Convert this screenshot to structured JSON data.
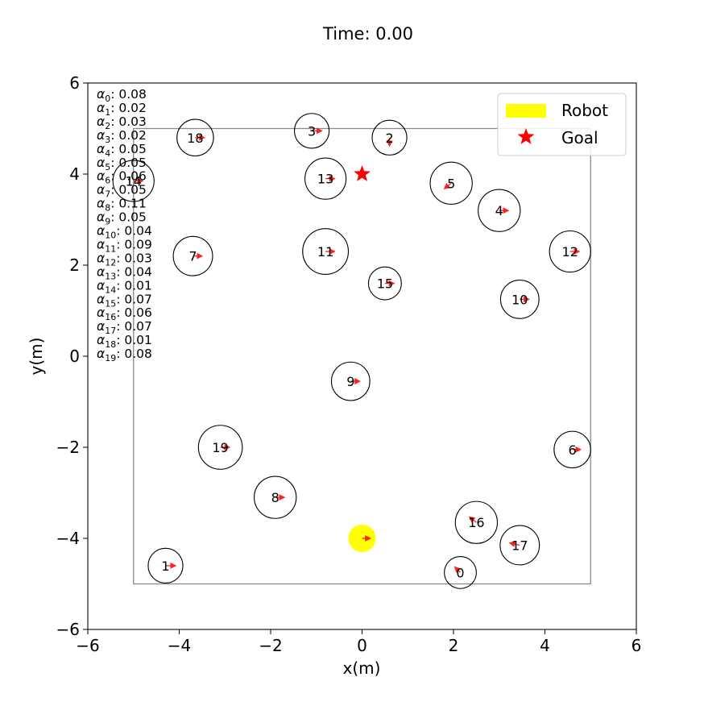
{
  "title": "Time: 0.00",
  "chart_data": {
    "type": "scatter",
    "title": "Time: 0.00",
    "xlabel": "x(m)",
    "ylabel": "y(m)",
    "xlim": [
      -6,
      6
    ],
    "ylim": [
      -6,
      6
    ],
    "xticks": [
      -6,
      -4,
      -2,
      0,
      2,
      4,
      6
    ],
    "yticks": [
      -6,
      -4,
      -2,
      0,
      2,
      4,
      6
    ],
    "xtick_labels": [
      "−6",
      "−4",
      "−2",
      "0",
      "2",
      "4",
      "6"
    ],
    "ytick_labels": [
      "−6",
      "−4",
      "−2",
      "0",
      "2",
      "4",
      "6"
    ],
    "grid": false,
    "legend_position": "top-right",
    "legend": [
      {
        "label": "Robot",
        "marker": "yellow-patch",
        "color": "#ffff00"
      },
      {
        "label": "Goal",
        "marker": "star",
        "color": "#ff0000"
      }
    ],
    "boundary": {
      "x": [
        -5,
        5
      ],
      "y": [
        -5,
        5
      ]
    },
    "robot": {
      "x": 0.0,
      "y": -4.0,
      "radius": 0.3,
      "color": "#ffff00",
      "heading_dx": 0.18,
      "heading_dy": 0.0
    },
    "goal": {
      "x": 0.0,
      "y": 4.0,
      "color": "#ff0000"
    },
    "humans": [
      {
        "id": "0",
        "x": 2.15,
        "y": -4.75,
        "r": 0.35,
        "dx": -0.12,
        "dy": 0.12
      },
      {
        "id": "1",
        "x": -4.3,
        "y": -4.6,
        "r": 0.38,
        "dx": 0.22,
        "dy": 0.0
      },
      {
        "id": "2",
        "x": 0.6,
        "y": 4.8,
        "r": 0.38,
        "dx": 0.0,
        "dy": -0.18
      },
      {
        "id": "3",
        "x": -1.1,
        "y": 4.95,
        "r": 0.38,
        "dx": 0.22,
        "dy": 0.0
      },
      {
        "id": "4",
        "x": 3.0,
        "y": 3.2,
        "r": 0.46,
        "dx": 0.2,
        "dy": 0.0
      },
      {
        "id": "5",
        "x": 1.95,
        "y": 3.8,
        "r": 0.46,
        "dx": -0.15,
        "dy": -0.12
      },
      {
        "id": "6",
        "x": 4.6,
        "y": -2.05,
        "r": 0.4,
        "dx": 0.18,
        "dy": 0.0
      },
      {
        "id": "7",
        "x": -3.7,
        "y": 2.2,
        "r": 0.43,
        "dx": 0.2,
        "dy": 0.0
      },
      {
        "id": "8",
        "x": -1.9,
        "y": -3.1,
        "r": 0.46,
        "dx": 0.2,
        "dy": 0.0
      },
      {
        "id": "9",
        "x": -0.25,
        "y": -0.55,
        "r": 0.42,
        "dx": 0.2,
        "dy": 0.0
      },
      {
        "id": "10",
        "x": 3.45,
        "y": 1.25,
        "r": 0.42,
        "dx": 0.2,
        "dy": 0.0
      },
      {
        "id": "11",
        "x": -0.8,
        "y": 2.3,
        "r": 0.5,
        "dx": 0.2,
        "dy": 0.0
      },
      {
        "id": "12",
        "x": 4.55,
        "y": 2.3,
        "r": 0.45,
        "dx": 0.2,
        "dy": 0.0
      },
      {
        "id": "13",
        "x": -0.8,
        "y": 3.9,
        "r": 0.45,
        "dx": 0.2,
        "dy": 0.0
      },
      {
        "id": "14",
        "x": -5.0,
        "y": 3.85,
        "r": 0.45,
        "dx": 0.2,
        "dy": 0.0
      },
      {
        "id": "15",
        "x": 0.5,
        "y": 1.6,
        "r": 0.36,
        "dx": 0.2,
        "dy": 0.0
      },
      {
        "id": "16",
        "x": 2.5,
        "y": -3.65,
        "r": 0.46,
        "dx": -0.15,
        "dy": 0.12
      },
      {
        "id": "17",
        "x": 3.45,
        "y": -4.15,
        "r": 0.43,
        "dx": -0.22,
        "dy": 0.05
      },
      {
        "id": "18",
        "x": -3.65,
        "y": 4.8,
        "r": 0.4,
        "dx": 0.2,
        "dy": 0.0
      },
      {
        "id": "19",
        "x": -3.1,
        "y": -2.0,
        "r": 0.48,
        "dx": 0.2,
        "dy": 0.0
      }
    ],
    "alphas": [
      {
        "label": "0",
        "value": "0.08"
      },
      {
        "label": "1",
        "value": "0.02"
      },
      {
        "label": "2",
        "value": "0.03"
      },
      {
        "label": "3",
        "value": "0.02"
      },
      {
        "label": "4",
        "value": "0.05"
      },
      {
        "label": "5",
        "value": "0.05"
      },
      {
        "label": "6",
        "value": "0.06"
      },
      {
        "label": "7",
        "value": "0.05"
      },
      {
        "label": "8",
        "value": "0.11"
      },
      {
        "label": "9",
        "value": "0.05"
      },
      {
        "label": "10",
        "value": "0.04"
      },
      {
        "label": "11",
        "value": "0.09"
      },
      {
        "label": "12",
        "value": "0.03"
      },
      {
        "label": "13",
        "value": "0.04"
      },
      {
        "label": "14",
        "value": "0.01"
      },
      {
        "label": "15",
        "value": "0.07"
      },
      {
        "label": "16",
        "value": "0.06"
      },
      {
        "label": "17",
        "value": "0.07"
      },
      {
        "label": "18",
        "value": "0.01"
      },
      {
        "label": "19",
        "value": "0.08"
      }
    ]
  }
}
